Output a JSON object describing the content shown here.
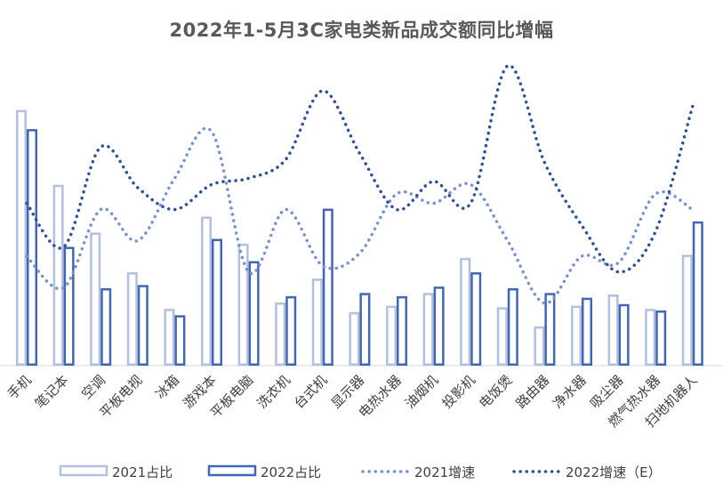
{
  "chart_data": {
    "type": "bar",
    "title": "2022年1-5月3C家电类新品成交额同比增幅",
    "categories": [
      "手机",
      "笔记本",
      "空调",
      "平板电视",
      "冰箱",
      "游戏本",
      "平板电脑",
      "洗衣机",
      "台式机",
      "显示器",
      "电热水器",
      "油烟机",
      "投影机",
      "电饭煲",
      "路由器",
      "净水器",
      "吸尘器",
      "燃气热水器",
      "扫地机器人"
    ],
    "series": [
      {
        "name": "2021占比",
        "kind": "bar",
        "color": "#b4c0e2",
        "values": [
          16.0,
          11.3,
          8.3,
          5.8,
          3.5,
          9.3,
          7.6,
          3.9,
          5.4,
          3.3,
          3.7,
          4.5,
          6.7,
          3.6,
          2.4,
          3.7,
          4.4,
          3.5,
          6.9
        ]
      },
      {
        "name": "2022占比",
        "kind": "bar",
        "color": "#4267b2",
        "values": [
          14.8,
          7.4,
          4.8,
          5.0,
          3.1,
          7.9,
          6.5,
          4.3,
          9.8,
          4.5,
          4.3,
          4.9,
          5.8,
          4.8,
          4.5,
          4.2,
          3.8,
          3.4,
          9.0
        ]
      },
      {
        "name": "2021增速",
        "kind": "line",
        "style": "dotted",
        "color": "#7a91cf",
        "values": [
          35,
          25,
          50,
          40,
          60,
          75,
          30,
          50,
          32,
          36,
          55,
          52,
          58,
          40,
          20,
          35,
          33,
          55,
          50
        ]
      },
      {
        "name": "2022增速（E）",
        "kind": "line",
        "style": "dotted",
        "color": "#2f4f9a",
        "values": [
          52,
          38,
          70,
          57,
          50,
          58,
          60,
          66,
          88,
          68,
          50,
          59,
          52,
          96,
          65,
          45,
          30,
          43,
          83
        ]
      }
    ],
    "ylim_bars": [
      0,
      16.5
    ],
    "ylim_lines": [
      0,
      100
    ],
    "legend_position": "bottom",
    "grid": false
  },
  "legend": {
    "item1": "2021占比",
    "item2": "2022占比",
    "item3": "2021增速",
    "item4": "2022增速（E）"
  }
}
